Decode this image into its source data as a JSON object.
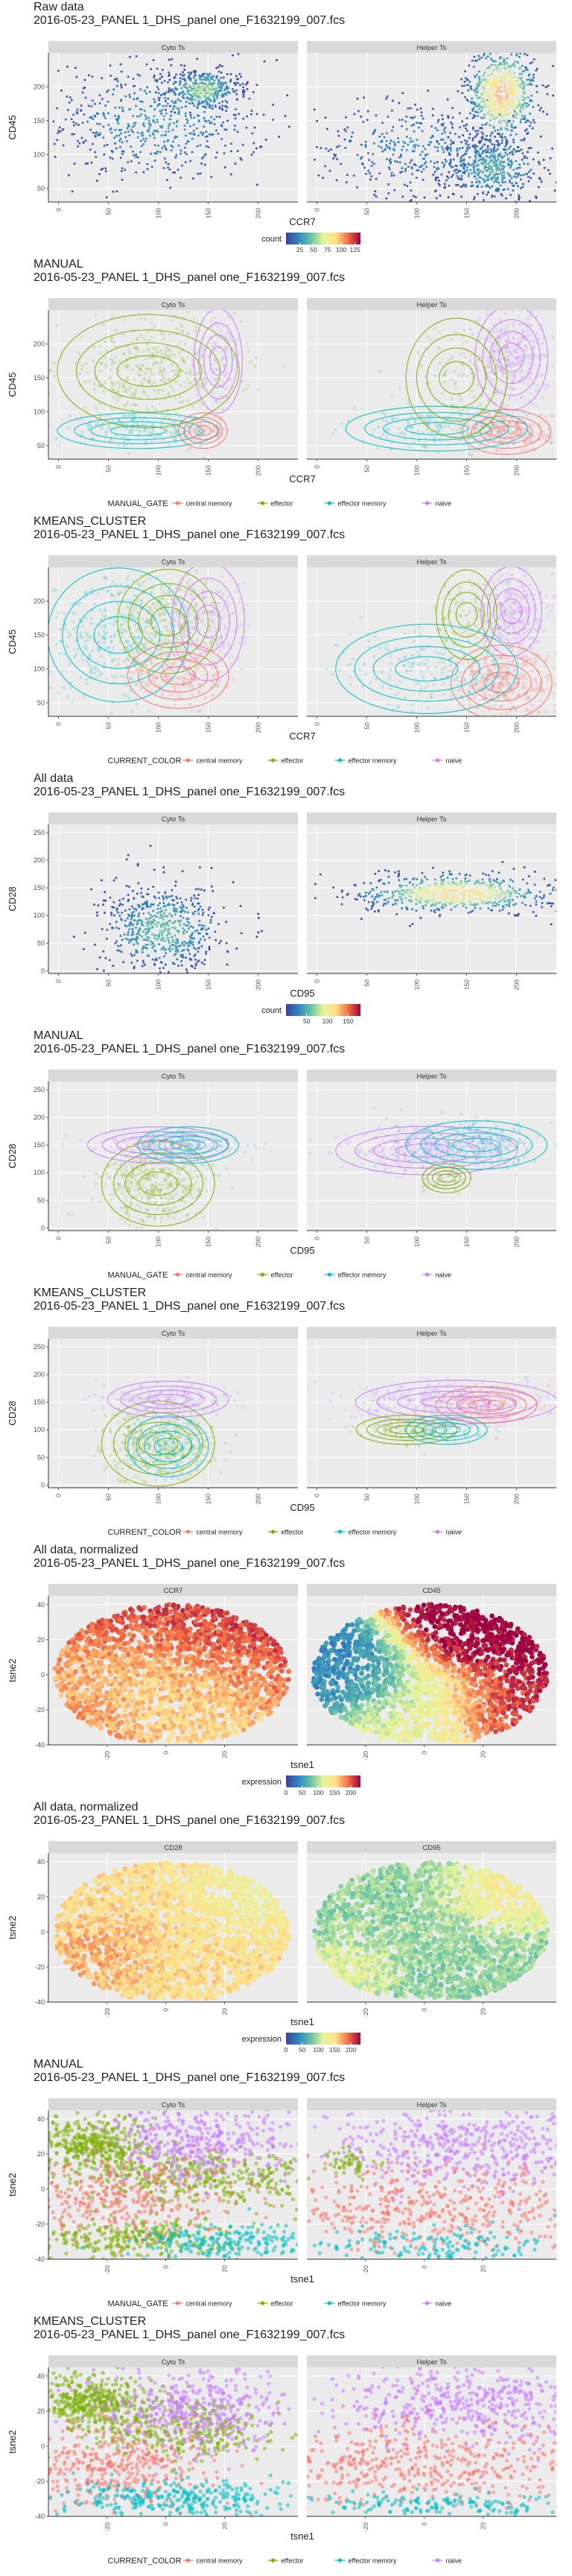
{
  "colors": {
    "central_memory": "#F8766D",
    "effector": "#7CAE00",
    "effector_memory": "#00BFC4",
    "naive": "#C77CFF",
    "panel_bg": "#EBEBEB",
    "strip_bg": "#D9D9D9",
    "count_scale": [
      "#3F3F9A",
      "#2E86C1",
      "#66C2A5",
      "#E6F598",
      "#FEE08B",
      "#F46D43",
      "#9E0142"
    ],
    "expression_scale": [
      "#3F3F9A",
      "#2E86C1",
      "#66C2A5",
      "#E6F598",
      "#FEE08B",
      "#F46D43",
      "#9E0142"
    ]
  },
  "chart_data": [
    {
      "type": "scatter",
      "variant": "density",
      "title": "Raw data",
      "subtitle": "2016-05-23_PANEL 1_DHS_panel one_F1632199_007.fcs",
      "facets": [
        "Cyto Ts",
        "Helper Ts"
      ],
      "xlabel": "CCR7",
      "ylabel": "CD45",
      "xlim": [
        -10,
        240
      ],
      "ylim": [
        30,
        250
      ],
      "xticks": [
        0,
        50,
        100,
        150,
        200
      ],
      "yticks": [
        50,
        100,
        150,
        200
      ],
      "legend": {
        "title": "count",
        "ticks": [
          25,
          50,
          75,
          100,
          125
        ],
        "range": [
          0,
          135
        ]
      },
      "clouds": [
        [
          {
            "cx": 100,
            "cy": 150,
            "sx": 55,
            "sy": 45,
            "w": 1,
            "v": 30
          },
          {
            "cx": 145,
            "cy": 195,
            "sx": 18,
            "sy": 15,
            "w": 0.5,
            "v": 60
          }
        ],
        [
          {
            "cx": 100,
            "cy": 110,
            "sx": 50,
            "sy": 35,
            "w": 0.6,
            "v": 25
          },
          {
            "cx": 185,
            "cy": 190,
            "sx": 18,
            "sy": 35,
            "w": 1,
            "v": 100
          },
          {
            "cx": 175,
            "cy": 80,
            "sx": 25,
            "sy": 25,
            "w": 0.7,
            "v": 40
          }
        ]
      ]
    },
    {
      "type": "scatter",
      "variant": "gates",
      "title": "MANUAL",
      "subtitle": "2016-05-23_PANEL 1_DHS_panel one_F1632199_007.fcs",
      "facets": [
        "Cyto Ts",
        "Helper Ts"
      ],
      "xlabel": "CCR7",
      "ylabel": "CD45",
      "xlim": [
        -10,
        240
      ],
      "ylim": [
        30,
        250
      ],
      "xticks": [
        0,
        50,
        100,
        150,
        200
      ],
      "yticks": [
        50,
        100,
        150,
        200
      ],
      "legend": {
        "title": "MANUAL_GATE",
        "items": [
          "central memory",
          "effector",
          "effector memory",
          "naive"
        ]
      },
      "clouds": [
        [
          {
            "g": "effector",
            "cx": 90,
            "cy": 160,
            "sx": 45,
            "sy": 38,
            "w": 1
          },
          {
            "g": "effector_memory",
            "cx": 80,
            "cy": 72,
            "sx": 40,
            "sy": 12,
            "w": 0.4
          },
          {
            "g": "central_memory",
            "cx": 145,
            "cy": 72,
            "sx": 12,
            "sy": 12,
            "w": 0.15
          },
          {
            "g": "naive",
            "cx": 160,
            "cy": 175,
            "sx": 12,
            "sy": 35,
            "w": 0.25
          }
        ],
        [
          {
            "g": "naive",
            "cx": 195,
            "cy": 180,
            "sx": 18,
            "sy": 35,
            "w": 1
          },
          {
            "g": "central_memory",
            "cx": 190,
            "cy": 70,
            "sx": 22,
            "sy": 15,
            "w": 0.7
          },
          {
            "g": "effector_memory",
            "cx": 120,
            "cy": 75,
            "sx": 45,
            "sy": 15,
            "w": 0.4
          },
          {
            "g": "effector",
            "cx": 140,
            "cy": 150,
            "sx": 25,
            "sy": 40,
            "w": 0.25
          }
        ]
      ]
    },
    {
      "type": "scatter",
      "variant": "gates",
      "title": "KMEANS_CLUSTER",
      "subtitle": "2016-05-23_PANEL 1_DHS_panel one_F1632199_007.fcs",
      "facets": [
        "Cyto Ts",
        "Helper Ts"
      ],
      "xlabel": "CCR7",
      "ylabel": "CD45",
      "xlim": [
        -10,
        240
      ],
      "ylim": [
        30,
        250
      ],
      "xticks": [
        0,
        50,
        100,
        150,
        200
      ],
      "yticks": [
        50,
        100,
        150,
        200
      ],
      "legend": {
        "title": "CURRENT_COLOR",
        "items": [
          "central memory",
          "effector",
          "effector memory",
          "naive"
        ]
      },
      "clouds": [
        [
          {
            "g": "effector_memory",
            "cx": 60,
            "cy": 150,
            "sx": 35,
            "sy": 45,
            "w": 1
          },
          {
            "g": "effector",
            "cx": 110,
            "cy": 170,
            "sx": 25,
            "sy": 35,
            "w": 0.6
          },
          {
            "g": "naive",
            "cx": 150,
            "cy": 170,
            "sx": 18,
            "sy": 40,
            "w": 0.5
          },
          {
            "g": "central_memory",
            "cx": 120,
            "cy": 90,
            "sx": 25,
            "sy": 22,
            "w": 0.5
          }
        ],
        [
          {
            "g": "naive",
            "cx": 195,
            "cy": 185,
            "sx": 15,
            "sy": 30,
            "w": 0.8
          },
          {
            "g": "central_memory",
            "cx": 185,
            "cy": 80,
            "sx": 25,
            "sy": 25,
            "w": 1
          },
          {
            "g": "effector_memory",
            "cx": 110,
            "cy": 100,
            "sx": 45,
            "sy": 30,
            "w": 0.5
          },
          {
            "g": "effector",
            "cx": 150,
            "cy": 180,
            "sx": 15,
            "sy": 30,
            "w": 0.2
          }
        ]
      ]
    },
    {
      "type": "scatter",
      "variant": "density",
      "title": "All data",
      "subtitle": "2016-05-23_PANEL 1_DHS_panel one_F1632199_007.fcs",
      "facets": [
        "Cyto Ts",
        "Helper Ts"
      ],
      "xlabel": "CD95",
      "ylabel": "CD28",
      "xlim": [
        -10,
        240
      ],
      "ylim": [
        -5,
        265
      ],
      "xticks": [
        0,
        50,
        100,
        150,
        200
      ],
      "yticks": [
        0,
        50,
        100,
        150,
        200,
        250
      ],
      "legend": {
        "title": "count",
        "ticks": [
          50,
          100,
          150
        ],
        "range": [
          0,
          180
        ]
      },
      "clouds": [
        [
          {
            "cx": 105,
            "cy": 75,
            "sx": 30,
            "sy": 40,
            "w": 1,
            "v": 60
          }
        ],
        [
          {
            "cx": 140,
            "cy": 140,
            "sx": 50,
            "sy": 18,
            "w": 1,
            "v": 120
          }
        ]
      ]
    },
    {
      "type": "scatter",
      "variant": "gates",
      "title": "MANUAL",
      "subtitle": "2016-05-23_PANEL 1_DHS_panel one_F1632199_007.fcs",
      "facets": [
        "Cyto Ts",
        "Helper Ts"
      ],
      "xlabel": "CD95",
      "ylabel": "CD28",
      "xlim": [
        -10,
        240
      ],
      "ylim": [
        -5,
        265
      ],
      "xticks": [
        0,
        50,
        100,
        150,
        200
      ],
      "yticks": [
        0,
        50,
        100,
        150,
        200,
        250
      ],
      "legend": {
        "title": "MANUAL_GATE",
        "items": [
          "central memory",
          "effector",
          "effector memory",
          "naive"
        ]
      },
      "clouds": [
        [
          {
            "g": "effector",
            "cx": 100,
            "cy": 80,
            "sx": 28,
            "sy": 35,
            "w": 1
          },
          {
            "g": "naive",
            "cx": 100,
            "cy": 150,
            "sx": 35,
            "sy": 15,
            "w": 0.4
          },
          {
            "g": "effector_memory",
            "cx": 130,
            "cy": 150,
            "sx": 25,
            "sy": 15,
            "w": 0.3
          }
        ],
        [
          {
            "g": "naive",
            "cx": 110,
            "cy": 140,
            "sx": 45,
            "sy": 20,
            "w": 1
          },
          {
            "g": "effector_memory",
            "cx": 160,
            "cy": 150,
            "sx": 35,
            "sy": 20,
            "w": 0.6
          },
          {
            "g": "effector",
            "cx": 130,
            "cy": 90,
            "sx": 12,
            "sy": 12,
            "w": 0.1
          }
        ]
      ]
    },
    {
      "type": "scatter",
      "variant": "gates",
      "title": "KMEANS_CLUSTER",
      "subtitle": "2016-05-23_PANEL 1_DHS_panel one_F1632199_007.fcs",
      "facets": [
        "Cyto Ts",
        "Helper Ts"
      ],
      "xlabel": "CD95",
      "ylabel": "CD28",
      "xlim": [
        -10,
        240
      ],
      "ylim": [
        -5,
        265
      ],
      "xticks": [
        0,
        50,
        100,
        150,
        200
      ],
      "yticks": [
        0,
        50,
        100,
        150,
        200,
        250
      ],
      "legend": {
        "title": "CURRENT_COLOR",
        "items": [
          "central memory",
          "effector",
          "effector memory",
          "naive"
        ]
      },
      "clouds": [
        [
          {
            "g": "effector",
            "cx": 100,
            "cy": 75,
            "sx": 28,
            "sy": 35,
            "w": 1
          },
          {
            "g": "effector_memory",
            "cx": 110,
            "cy": 70,
            "sx": 20,
            "sy": 25,
            "w": 0.4
          },
          {
            "g": "naive",
            "cx": 110,
            "cy": 155,
            "sx": 30,
            "sy": 15,
            "w": 0.5
          }
        ],
        [
          {
            "g": "naive",
            "cx": 140,
            "cy": 150,
            "sx": 50,
            "sy": 18,
            "w": 1
          },
          {
            "g": "effector",
            "cx": 90,
            "cy": 100,
            "sx": 25,
            "sy": 12,
            "w": 0.3
          },
          {
            "g": "effector_memory",
            "cx": 130,
            "cy": 100,
            "sx": 20,
            "sy": 12,
            "w": 0.2
          },
          {
            "g": "central_memory",
            "cx": 170,
            "cy": 145,
            "sx": 25,
            "sy": 15,
            "w": 0.2
          }
        ]
      ]
    },
    {
      "type": "heatmap",
      "variant": "tsne-expression",
      "title": "All data, normalized",
      "subtitle": "2016-05-23_PANEL 1_DHS_panel one_F1632199_007.fcs",
      "facets": [
        "CCR7",
        "CD45"
      ],
      "xlabel": "tsne1",
      "ylabel": "tsne2",
      "xlim": [
        -40,
        45
      ],
      "ylim": [
        -40,
        45
      ],
      "xticks": [
        -20,
        0,
        20
      ],
      "yticks": [
        -40,
        -20,
        0,
        20,
        40
      ],
      "legend": {
        "title": "expression",
        "ticks": [
          0,
          50,
          100,
          150,
          200
        ],
        "range": [
          0,
          230
        ]
      },
      "fields": [
        [
          {
            "cx": 10,
            "cy": 20,
            "r": 30,
            "v": 210
          },
          {
            "cx": -25,
            "cy": -25,
            "r": 20,
            "v": 180
          },
          {
            "cx": 0,
            "cy": -5,
            "r": 25,
            "v": 140
          }
        ],
        [
          {
            "cx": 20,
            "cy": 20,
            "r": 20,
            "v": 230
          },
          {
            "cx": -25,
            "cy": 0,
            "r": 18,
            "v": 40
          },
          {
            "cx": 0,
            "cy": -20,
            "r": 22,
            "v": 120
          },
          {
            "cx": 25,
            "cy": -20,
            "r": 15,
            "v": 220
          }
        ]
      ]
    },
    {
      "type": "heatmap",
      "variant": "tsne-expression",
      "title": "All data, normalized",
      "subtitle": "2016-05-23_PANEL 1_DHS_panel one_F1632199_007.fcs",
      "facets": [
        "CD28",
        "CD95"
      ],
      "xlabel": "tsne1",
      "ylabel": "tsne2",
      "xlim": [
        -40,
        45
      ],
      "ylim": [
        -40,
        45
      ],
      "xticks": [
        -20,
        0,
        20
      ],
      "yticks": [
        -40,
        -20,
        0,
        20,
        40
      ],
      "legend": {
        "title": "expression",
        "ticks": [
          0,
          50,
          100,
          150,
          200
        ],
        "range": [
          0,
          230
        ]
      },
      "fields": [
        [
          {
            "cx": 0,
            "cy": 5,
            "r": 35,
            "v": 150
          },
          {
            "cx": -20,
            "cy": -10,
            "r": 15,
            "v": 180
          },
          {
            "cx": 25,
            "cy": 20,
            "r": 15,
            "v": 120
          }
        ],
        [
          {
            "cx": 0,
            "cy": 0,
            "r": 35,
            "v": 90
          },
          {
            "cx": 25,
            "cy": 20,
            "r": 15,
            "v": 150
          },
          {
            "cx": -25,
            "cy": -20,
            "r": 12,
            "v": 130
          }
        ]
      ]
    },
    {
      "type": "scatter",
      "variant": "tsne-gates",
      "title": "MANUAL",
      "subtitle": "2016-05-23_PANEL 1_DHS_panel one_F1632199_007.fcs",
      "facets": [
        "Cyto Ts",
        "Helper Ts"
      ],
      "xlabel": "tsne1",
      "ylabel": "tsne2",
      "xlim": [
        -40,
        45
      ],
      "ylim": [
        -40,
        45
      ],
      "xticks": [
        -20,
        0,
        20
      ],
      "yticks": [
        -40,
        -20,
        0,
        20,
        40
      ],
      "legend": {
        "title": "MANUAL_GATE",
        "items": [
          "central memory",
          "effector",
          "effector memory",
          "naive"
        ]
      },
      "clouds": [
        [
          {
            "g": "effector",
            "cx": -25,
            "cy": 25,
            "sx": 10,
            "sy": 8,
            "w": 0.8
          },
          {
            "g": "effector",
            "cx": 15,
            "cy": 5,
            "sx": 22,
            "sy": 8,
            "w": 0.8
          },
          {
            "g": "effector",
            "cx": -15,
            "cy": -28,
            "sx": 18,
            "sy": 6,
            "w": 0.6
          },
          {
            "g": "naive",
            "cx": 10,
            "cy": 25,
            "sx": 15,
            "sy": 12,
            "w": 0.8
          },
          {
            "g": "central_memory",
            "cx": -15,
            "cy": -5,
            "sx": 20,
            "sy": 12,
            "w": 0.7
          },
          {
            "g": "effector_memory",
            "cx": 20,
            "cy": -30,
            "sx": 15,
            "sy": 5,
            "w": 0.4
          }
        ],
        [
          {
            "g": "naive",
            "cx": 15,
            "cy": 25,
            "sx": 25,
            "sy": 12,
            "w": 1
          },
          {
            "g": "central_memory",
            "cx": 0,
            "cy": -10,
            "sx": 35,
            "sy": 12,
            "w": 1
          },
          {
            "g": "effector_memory",
            "cx": 5,
            "cy": -32,
            "sx": 20,
            "sy": 5,
            "w": 0.3
          },
          {
            "g": "effector",
            "cx": -25,
            "cy": 15,
            "sx": 5,
            "sy": 5,
            "w": 0.1
          }
        ]
      ]
    },
    {
      "type": "scatter",
      "variant": "tsne-gates",
      "title": "KMEANS_CLUSTER",
      "subtitle": "2016-05-23_PANEL 1_DHS_panel one_F1632199_007.fcs",
      "facets": [
        "Cyto Ts",
        "Helper Ts"
      ],
      "xlabel": "tsne1",
      "ylabel": "tsne2",
      "xlim": [
        -40,
        45
      ],
      "ylim": [
        -40,
        45
      ],
      "xticks": [
        -20,
        0,
        20
      ],
      "yticks": [
        -40,
        -20,
        0,
        20,
        40
      ],
      "legend": {
        "title": "CURRENT_COLOR",
        "items": [
          "central memory",
          "effector",
          "effector memory",
          "naive"
        ]
      },
      "clouds": [
        [
          {
            "g": "effector",
            "cx": -25,
            "cy": 25,
            "sx": 10,
            "sy": 8,
            "w": 0.8
          },
          {
            "g": "effector",
            "cx": 5,
            "cy": 10,
            "sx": 15,
            "sy": 8,
            "w": 0.6
          },
          {
            "g": "naive",
            "cx": 10,
            "cy": 20,
            "sx": 15,
            "sy": 12,
            "w": 0.8
          },
          {
            "g": "central_memory",
            "cx": -20,
            "cy": -10,
            "sx": 18,
            "sy": 12,
            "w": 0.8
          },
          {
            "g": "effector_memory",
            "cx": 5,
            "cy": -30,
            "sx": 20,
            "sy": 5,
            "w": 0.6
          }
        ],
        [
          {
            "g": "naive",
            "cx": 15,
            "cy": 25,
            "sx": 25,
            "sy": 12,
            "w": 1
          },
          {
            "g": "central_memory",
            "cx": 0,
            "cy": -10,
            "sx": 35,
            "sy": 12,
            "w": 1
          },
          {
            "g": "effector_memory",
            "cx": 5,
            "cy": -33,
            "sx": 20,
            "sy": 4,
            "w": 0.3
          }
        ]
      ]
    }
  ]
}
